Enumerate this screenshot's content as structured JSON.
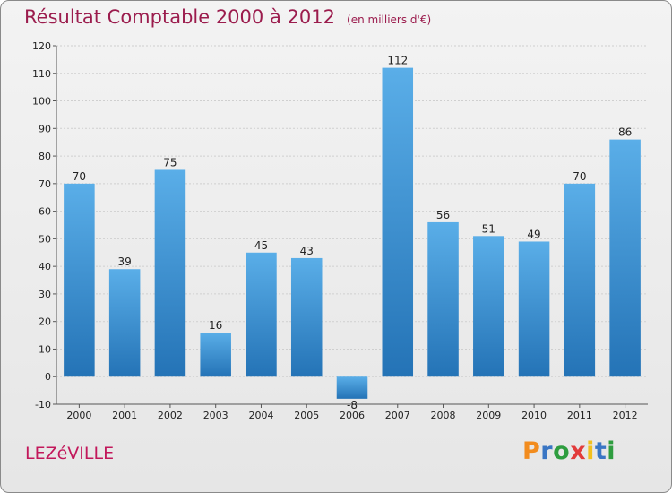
{
  "chart_data": {
    "type": "bar",
    "title": "Résultat Comptable 2000 à 2012",
    "subtitle": "(en milliers d'€)",
    "categories": [
      "2000",
      "2001",
      "2002",
      "2003",
      "2004",
      "2005",
      "2006",
      "2007",
      "2008",
      "2009",
      "2010",
      "2011",
      "2012"
    ],
    "values": [
      70,
      39,
      75,
      16,
      45,
      43,
      -8,
      112,
      56,
      51,
      49,
      70,
      86
    ],
    "ylim": [
      -10,
      120
    ],
    "yticks": [
      -10,
      0,
      10,
      20,
      30,
      40,
      50,
      60,
      70,
      80,
      90,
      100,
      110,
      120
    ],
    "grid": true,
    "bar_color": "#3b8fd5"
  },
  "footer": {
    "town": "LEZéVILLE",
    "logo_letters": [
      "P",
      "r",
      "o",
      "x",
      "i",
      "t",
      "i"
    ],
    "logo_colors": [
      "#f28c1e",
      "#3a76c4",
      "#2e9d3f",
      "#e23b3b",
      "#f2c01e",
      "#3a76c4",
      "#2e9d3f"
    ]
  }
}
